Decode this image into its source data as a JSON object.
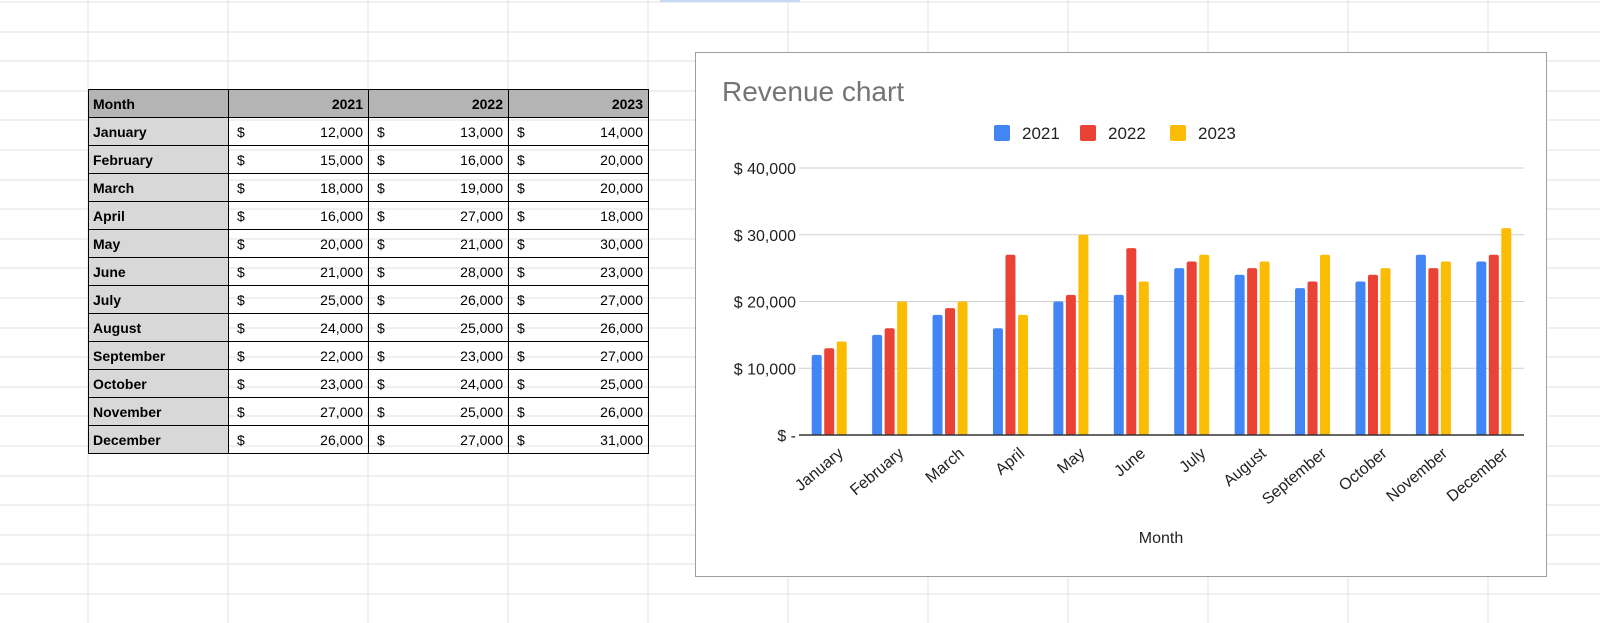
{
  "table": {
    "header": {
      "month": "Month",
      "years": [
        "2021",
        "2022",
        "2023"
      ]
    },
    "currency_symbol": "$",
    "rows": [
      {
        "month": "January",
        "values": [
          "12,000",
          "13,000",
          "14,000"
        ]
      },
      {
        "month": "February",
        "values": [
          "15,000",
          "16,000",
          "20,000"
        ]
      },
      {
        "month": "March",
        "values": [
          "18,000",
          "19,000",
          "20,000"
        ]
      },
      {
        "month": "April",
        "values": [
          "16,000",
          "27,000",
          "18,000"
        ]
      },
      {
        "month": "May",
        "values": [
          "20,000",
          "21,000",
          "30,000"
        ]
      },
      {
        "month": "June",
        "values": [
          "21,000",
          "28,000",
          "23,000"
        ]
      },
      {
        "month": "July",
        "values": [
          "25,000",
          "26,000",
          "27,000"
        ]
      },
      {
        "month": "August",
        "values": [
          "24,000",
          "25,000",
          "26,000"
        ]
      },
      {
        "month": "September",
        "values": [
          "22,000",
          "23,000",
          "27,000"
        ]
      },
      {
        "month": "October",
        "values": [
          "23,000",
          "24,000",
          "25,000"
        ]
      },
      {
        "month": "November",
        "values": [
          "27,000",
          "25,000",
          "26,000"
        ]
      },
      {
        "month": "December",
        "values": [
          "26,000",
          "27,000",
          "31,000"
        ]
      }
    ]
  },
  "colors": {
    "2021": "#4285f4",
    "2022": "#ea4335",
    "2023": "#fbbc04"
  },
  "chart_data": {
    "type": "bar",
    "title": "Revenue chart",
    "xlabel": "Month",
    "ylabel": "",
    "ylim": [
      0,
      40000
    ],
    "yticks": [
      0,
      10000,
      20000,
      30000,
      40000
    ],
    "ytick_labels": [
      "$ -",
      "$ 10,000",
      "$ 20,000",
      "$ 30,000",
      "$ 40,000"
    ],
    "grid": true,
    "legend_position": "top",
    "categories": [
      "January",
      "February",
      "March",
      "April",
      "May",
      "June",
      "July",
      "August",
      "September",
      "October",
      "November",
      "December"
    ],
    "series": [
      {
        "name": "2021",
        "color": "#4285f4",
        "values": [
          12000,
          15000,
          18000,
          16000,
          20000,
          21000,
          25000,
          24000,
          22000,
          23000,
          27000,
          26000
        ]
      },
      {
        "name": "2022",
        "color": "#ea4335",
        "values": [
          13000,
          16000,
          19000,
          27000,
          21000,
          28000,
          26000,
          25000,
          23000,
          24000,
          25000,
          27000
        ]
      },
      {
        "name": "2023",
        "color": "#fbbc04",
        "values": [
          14000,
          20000,
          20000,
          18000,
          30000,
          23000,
          27000,
          26000,
          27000,
          25000,
          26000,
          31000
        ]
      }
    ]
  }
}
